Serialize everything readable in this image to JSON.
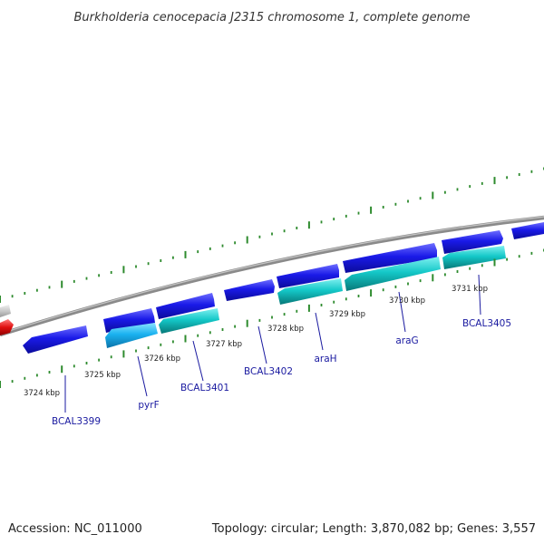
{
  "title": "Burkholderia cenocepacia J2315 chromosome 1, complete genome",
  "footer": {
    "accession": "Accession: NC_011000",
    "summary": "Topology: circular; Length: 3,870,082 bp; Genes: 3,557"
  },
  "scale_labels": [
    "3724 kbp",
    "3725 kbp",
    "3726 kbp",
    "3727 kbp",
    "3728 kbp",
    "3729 kbp",
    "3730 kbp",
    "3731 kbp"
  ],
  "gene_labels": [
    "BCAL3399",
    "pyrF",
    "BCAL3401",
    "BCAL3402",
    "araH",
    "araG",
    "BCAL3405"
  ],
  "colors": {
    "backbone": "#8a8a8a",
    "ticks": "#2e8b2e",
    "gene_blue": "#1515e0",
    "gene_light_blue": "#1ab2f0",
    "gene_cyan": "#12c6c6",
    "gene_red": "#e01010",
    "gene_grey": "#c8c8c8"
  }
}
